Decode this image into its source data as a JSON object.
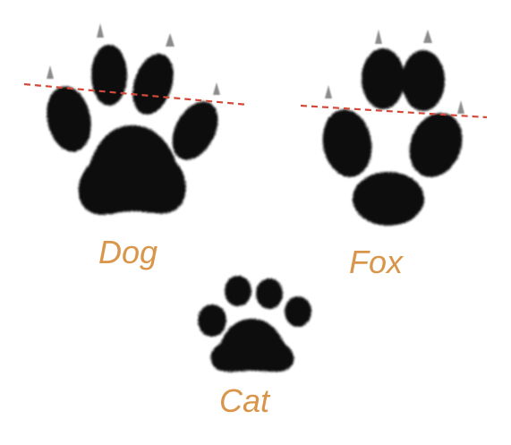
{
  "colors": {
    "background": "#ffffff",
    "paw": "#0c0c0c",
    "claw": "#8a8a8a",
    "label": "#d9954a",
    "guide_line": "#d44a3a"
  },
  "prints": [
    {
      "id": "dog",
      "label": "Dog",
      "claws": true,
      "guide_line": "dashed"
    },
    {
      "id": "fox",
      "label": "Fox",
      "claws": true,
      "guide_line": "dashed"
    },
    {
      "id": "cat",
      "label": "Cat",
      "claws": false,
      "guide_line": "none"
    }
  ]
}
